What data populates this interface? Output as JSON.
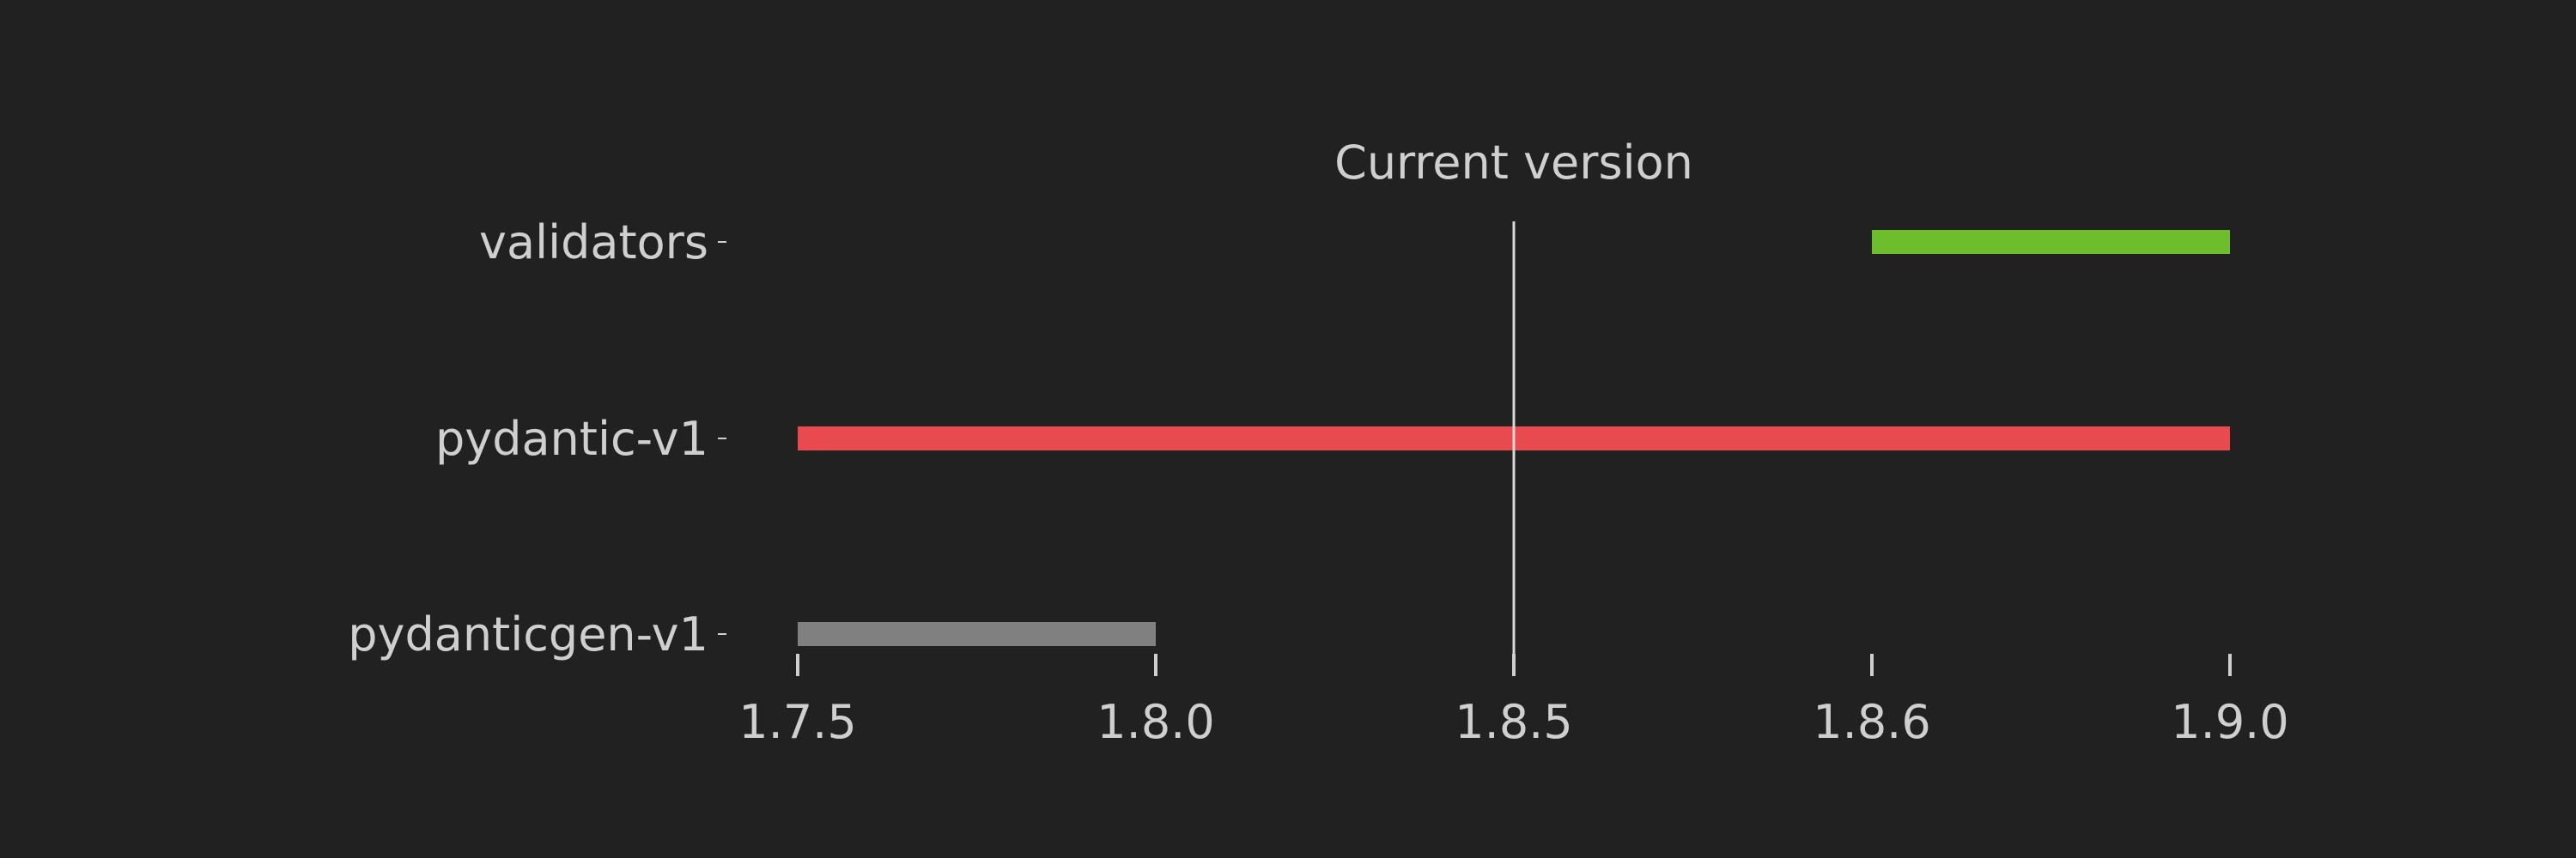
{
  "chart_data": {
    "type": "timeline",
    "title": "",
    "xlabel": "",
    "ylabel": "",
    "x_tick_labels": [
      "1.7.5",
      "1.8.0",
      "1.8.5",
      "1.8.6",
      "1.9.0"
    ],
    "categories": [
      "validators",
      "pydantic-v1",
      "pydanticgen-v1"
    ],
    "series": [
      {
        "category": "validators",
        "start": "1.8.6",
        "end": "1.9.0",
        "color": "#6dbd2d"
      },
      {
        "category": "pydantic-v1",
        "start": "1.7.5",
        "end": "1.9.0",
        "color": "#e84a4f"
      },
      {
        "category": "pydanticgen-v1",
        "start": "1.7.5",
        "end": "1.8.0",
        "color": "#808080"
      }
    ],
    "marker": {
      "label": "Current version",
      "at": "1.8.5",
      "color": "#d8d8d8"
    },
    "grid": false
  },
  "theme": {
    "background": "#212121",
    "text": "#cfcfcf"
  }
}
